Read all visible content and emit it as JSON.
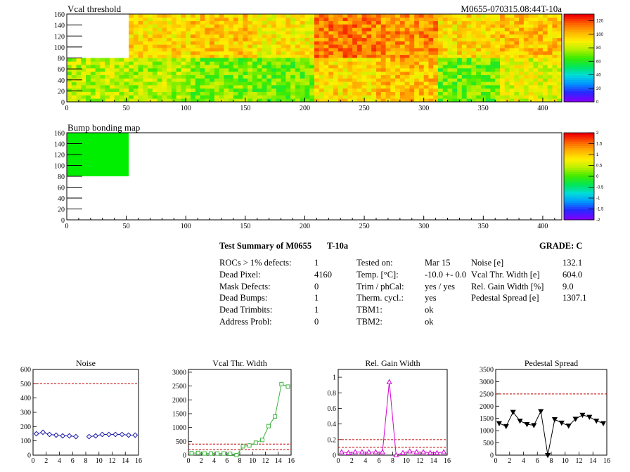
{
  "colors": {
    "plot_frame": "#000000",
    "limit_line": "#c00000",
    "noise_series": "#1a1aa8",
    "vcal_series": "#3cb43c",
    "gain_series": "#d400d4",
    "pedestal_series": "#000000"
  },
  "chart_data": [
    {
      "type": "heatmap",
      "title": "Vcal threshold",
      "annotation": "M0655-070315.08:44T-10a",
      "xlim": [
        0,
        416
      ],
      "ylim": [
        0,
        160
      ],
      "xticks": [
        0,
        50,
        100,
        150,
        200,
        250,
        300,
        350,
        400
      ],
      "yticks": [
        0,
        20,
        40,
        60,
        80,
        100,
        120,
        140,
        160
      ],
      "roc_grid": {
        "cols": 8,
        "rows": 2,
        "cell_width": 52,
        "cell_height": 80
      },
      "roc_mean_values": [
        [
          0,
          95,
          98,
          92,
          112,
          110,
          95,
          100
        ],
        [
          80,
          78,
          72,
          70,
          95,
          100,
          70,
          85
        ]
      ],
      "empty_cells": [
        [
          0,
          0
        ]
      ],
      "colorbar": {
        "min": 0,
        "max": 130,
        "ticks": [
          0,
          20,
          40,
          60,
          80,
          100,
          120
        ]
      }
    },
    {
      "type": "heatmap",
      "title": "Bump bonding map",
      "xlim": [
        0,
        416
      ],
      "ylim": [
        0,
        160
      ],
      "xticks": [
        0,
        50,
        100,
        150,
        200,
        250,
        300,
        350,
        400
      ],
      "yticks": [
        0,
        20,
        40,
        60,
        80,
        100,
        120,
        140,
        160
      ],
      "filled_region": {
        "x": [
          0,
          52
        ],
        "y": [
          80,
          160
        ],
        "value": 0
      },
      "colorbar": {
        "min": -2,
        "max": 2,
        "ticks": [
          "2",
          "1.5",
          "1",
          "0.5",
          "0",
          "-0.5",
          "-1",
          "-1.5",
          "-2"
        ]
      }
    },
    {
      "type": "line",
      "title": "Noise",
      "xlim": [
        0,
        16
      ],
      "ylim": [
        0,
        600
      ],
      "xticks": [
        0,
        2,
        4,
        6,
        8,
        10,
        12,
        14,
        16
      ],
      "yticks": [
        0,
        100,
        200,
        300,
        400,
        500,
        600
      ],
      "x": [
        0.5,
        1.5,
        2.5,
        3.5,
        4.5,
        5.5,
        6.5,
        8.5,
        9.5,
        10.5,
        11.5,
        12.5,
        13.5,
        14.5,
        15.5
      ],
      "values": [
        150,
        160,
        145,
        140,
        135,
        135,
        130,
        130,
        135,
        145,
        145,
        145,
        145,
        140,
        140
      ],
      "limit_lines": [
        500
      ],
      "marker": "diamond-open"
    },
    {
      "type": "line",
      "title": "Vcal Thr. Width",
      "xlim": [
        0,
        16
      ],
      "ylim": [
        0,
        3100
      ],
      "xticks": [
        0,
        2,
        4,
        6,
        8,
        10,
        12,
        14,
        16
      ],
      "yticks": [
        0,
        500,
        1000,
        1500,
        2000,
        2500,
        3000
      ],
      "x": [
        0.5,
        1.5,
        2.5,
        3.5,
        4.5,
        5.5,
        6.5,
        7.5,
        8.5,
        9.5,
        10.5,
        11.5,
        12.5,
        13.5,
        14.5,
        15.5
      ],
      "values": [
        70,
        80,
        60,
        60,
        60,
        60,
        50,
        0,
        320,
        350,
        450,
        550,
        1050,
        1400,
        2570,
        2480
      ],
      "limit_lines": [
        200,
        400
      ],
      "marker": "square-open"
    },
    {
      "type": "line",
      "title": "Rel. Gain Width",
      "xlim": [
        0,
        16
      ],
      "ylim": [
        0,
        1.1
      ],
      "xticks": [
        0,
        2,
        4,
        6,
        8,
        10,
        12,
        14,
        16
      ],
      "yticks": [
        0,
        0.2,
        0.4,
        0.6,
        0.8,
        1
      ],
      "x": [
        0.5,
        1.5,
        2.5,
        3.5,
        4.5,
        5.5,
        6.5,
        7.5,
        8.5,
        9.5,
        10.5,
        11.5,
        12.5,
        13.5,
        14.5,
        15.5
      ],
      "values": [
        0.04,
        0.03,
        0.04,
        0.04,
        0.04,
        0.04,
        0.04,
        0.94,
        0.0,
        0.03,
        0.05,
        0.04,
        0.04,
        0.03,
        0.03,
        0.04
      ],
      "limit_lines": [
        0.1,
        0.2
      ],
      "marker": "triangle-open"
    },
    {
      "type": "line",
      "title": "Pedestal Spread",
      "xlim": [
        0,
        16
      ],
      "ylim": [
        0,
        3500
      ],
      "xticks": [
        0,
        2,
        4,
        6,
        8,
        10,
        12,
        14,
        16
      ],
      "yticks": [
        0,
        500,
        1000,
        1500,
        2000,
        2500,
        3000,
        3500
      ],
      "x": [
        0.5,
        1.5,
        2.5,
        3.5,
        4.5,
        5.5,
        6.5,
        7.5,
        8.5,
        9.5,
        10.5,
        11.5,
        12.5,
        13.5,
        14.5,
        15.5
      ],
      "values": [
        1300,
        1180,
        1760,
        1400,
        1260,
        1220,
        1790,
        0,
        1460,
        1320,
        1200,
        1480,
        1640,
        1560,
        1400,
        1300
      ],
      "limit_lines": [
        2500
      ],
      "marker": "triangle-filled"
    }
  ],
  "summary": {
    "title": "Test Summary of M0655",
    "temp_label": "T-10a",
    "grade": "GRADE:  C",
    "col1": [
      {
        "label": "ROCs > 1% defects:",
        "value": "1"
      },
      {
        "label": "Dead Pixel:",
        "value": "4160"
      },
      {
        "label": "Mask Defects:",
        "value": "0"
      },
      {
        "label": "Dead Bumps:",
        "value": "1"
      },
      {
        "label": "Dead Trimbits:",
        "value": "1"
      },
      {
        "label": "Address Probl:",
        "value": "0"
      }
    ],
    "col2": [
      {
        "label": "Tested on:",
        "value": "Mar 15"
      },
      {
        "label": "Temp. [°C]:",
        "value": "-10.0 +- 0.0"
      },
      {
        "label": "Trim / phCal:",
        "value": "yes / yes"
      },
      {
        "label": "Therm. cycl.:",
        "value": "yes"
      },
      {
        "label": "TBM1:",
        "value": "ok"
      },
      {
        "label": "TBM2:",
        "value": "ok"
      }
    ],
    "col3": [
      {
        "label": "Noise [e]",
        "value": "132.1"
      },
      {
        "label": "Vcal Thr. Width [e]",
        "value": "604.0"
      },
      {
        "label": "Rel. Gain Width [%]",
        "value": "9.0"
      },
      {
        "label": "Pedestal Spread [e]",
        "value": "1307.1"
      }
    ]
  }
}
